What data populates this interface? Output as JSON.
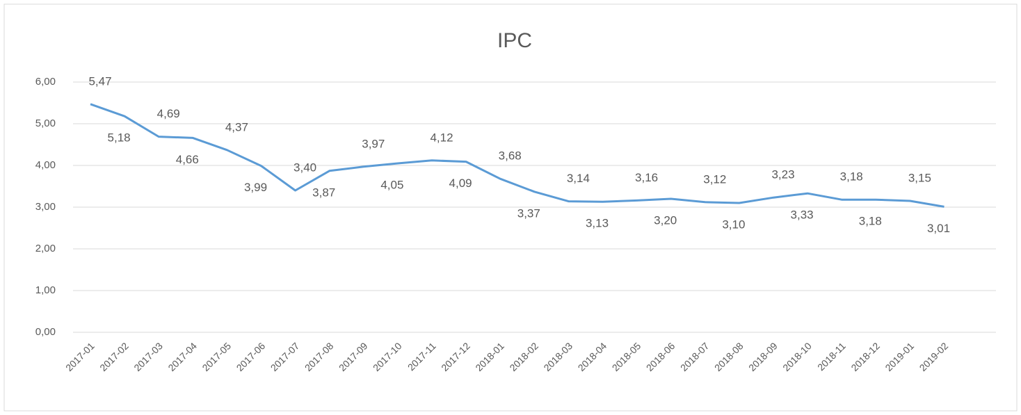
{
  "chart_data": {
    "type": "line",
    "title": "IPC",
    "categories": [
      "2017-01",
      "2017-02",
      "2017-03",
      "2017-04",
      "2017-05",
      "2017-06",
      "2017-07",
      "2017-08",
      "2017-09",
      "2017-10",
      "2017-11",
      "2017-12",
      "2018-01",
      "2018-02",
      "2018-03",
      "2018-04",
      "2018-05",
      "2018-06",
      "2018-07",
      "2018-08",
      "2018-09",
      "2018-10",
      "2018-11",
      "2018-12",
      "2019-01",
      "2019-02"
    ],
    "series": [
      {
        "name": "IPC",
        "color": "#5b9bd5",
        "values": [
          5.47,
          5.18,
          4.69,
          4.66,
          4.37,
          3.99,
          3.4,
          3.87,
          3.97,
          4.05,
          4.12,
          4.09,
          3.68,
          3.37,
          3.14,
          3.13,
          3.16,
          3.2,
          3.12,
          3.1,
          3.23,
          3.33,
          3.18,
          3.18,
          3.15,
          3.01
        ],
        "value_labels": [
          "5,47",
          "5,18",
          "4,69",
          "4,66",
          "4,37",
          "3,99",
          "3,40",
          "3,87",
          "3,97",
          "4,05",
          "4,12",
          "4,09",
          "3,68",
          "3,37",
          "3,14",
          "3,13",
          "3,16",
          "3,20",
          "3,12",
          "3,10",
          "3,23",
          "3,33",
          "3,18",
          "3,18",
          "3,15",
          "3,01"
        ]
      }
    ],
    "ylim": [
      0,
      6
    ],
    "yticks": [
      {
        "value": 0,
        "label": "0,00"
      },
      {
        "value": 1,
        "label": "1,00"
      },
      {
        "value": 2,
        "label": "2,00"
      },
      {
        "value": 3,
        "label": "3,00"
      },
      {
        "value": 4,
        "label": "4,00"
      },
      {
        "value": 5,
        "label": "5,00"
      },
      {
        "value": 6,
        "label": "6,00"
      }
    ],
    "grid": true
  }
}
